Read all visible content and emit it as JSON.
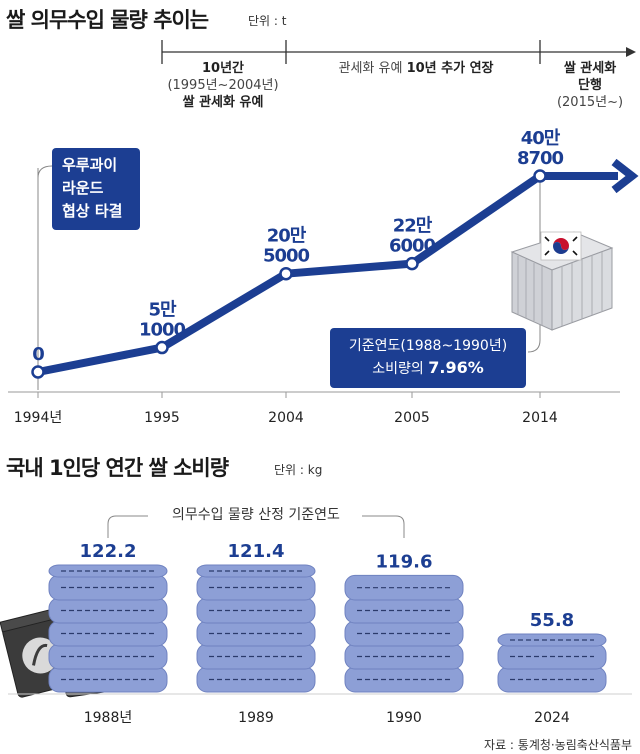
{
  "header1": {
    "title": "쌀 의무수입 물량 추이는",
    "unit": "단위 : t"
  },
  "header2": {
    "title": "국내 1인당 연간 쌀 소비량",
    "unit": "단위 : kg"
  },
  "timeline": {
    "period1": {
      "line1": "10년간",
      "line2": "(1995년~2004년)",
      "line3": "쌀 관세화 유예"
    },
    "period2": {
      "prefix": "관세화 유예 ",
      "emphasis": "10년 추가 연장"
    },
    "period3": {
      "line1": "쌀 관세화",
      "line2": "단행",
      "line3": "(2015년~)"
    }
  },
  "callouts": {
    "uruguay": {
      "line1": "우루과이",
      "line2": "라운드",
      "line3": "협상 타결"
    },
    "baseline": {
      "line1": "기준연도(1988~1990년)",
      "line2_prefix": "소비량의 ",
      "line2_value": "7.96%"
    }
  },
  "bracket_label": "의무수입 물량 산정 기준연도",
  "source": "자료 : 통계청·농림축산식품부",
  "colors": {
    "primary": "#1c3e92",
    "sack": "#8d9fd6",
    "sack_dark": "#6f82c0"
  },
  "chart_data": [
    {
      "type": "line",
      "title": "쌀 의무수입 물량 추이는",
      "unit": "t",
      "x": [
        "1994년",
        "1995",
        "2004",
        "2005",
        "2014"
      ],
      "values": [
        0,
        51000,
        205000,
        226000,
        408700
      ],
      "data_labels": [
        [
          "0"
        ],
        [
          "5만",
          "1000"
        ],
        [
          "20만",
          "5000"
        ],
        [
          "22만",
          "6000"
        ],
        [
          "40만",
          "8700"
        ]
      ]
    },
    {
      "type": "bar",
      "title": "국내 1인당 연간 쌀 소비량",
      "unit": "kg",
      "categories": [
        "1988년",
        "1989",
        "1990",
        "2024"
      ],
      "values": [
        122.2,
        121.4,
        119.6,
        55.8
      ],
      "data_labels": [
        "122.2",
        "121.4",
        "119.6",
        "55.8"
      ]
    }
  ]
}
